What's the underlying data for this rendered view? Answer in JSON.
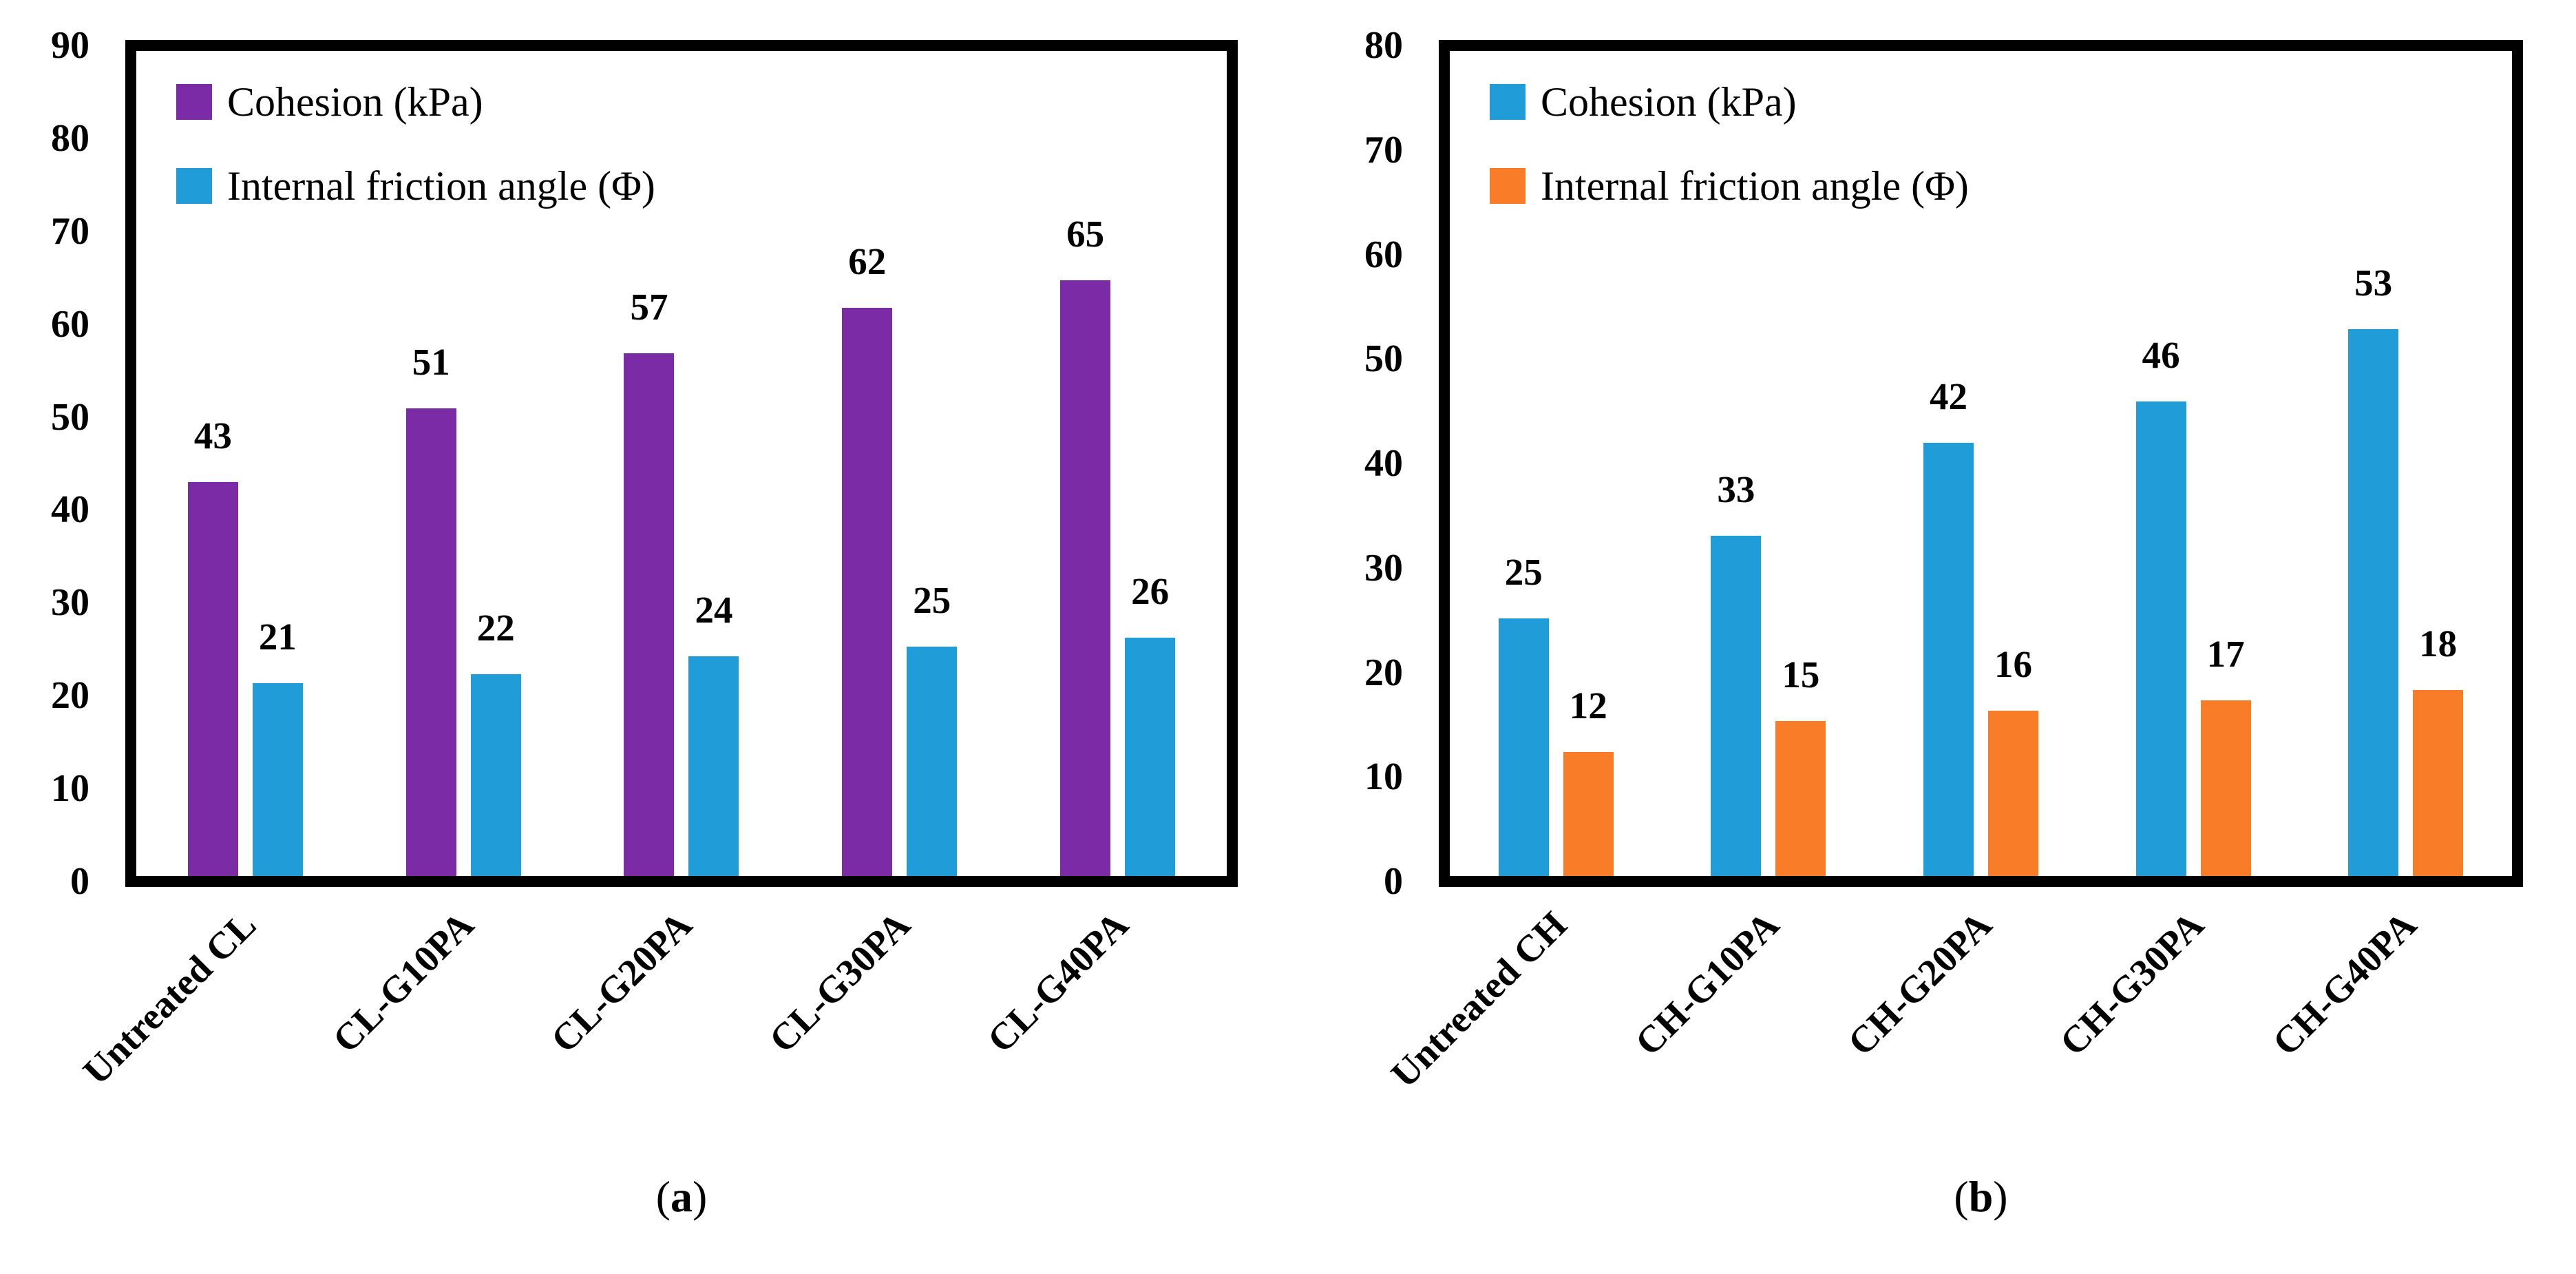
{
  "figure_background": "#ffffff",
  "text_color": "#000000",
  "axis_frame_color": "#000000",
  "chart_data": [
    {
      "type": "bar",
      "panel_label": "a",
      "title": "",
      "xlabel": "",
      "ylabel": "",
      "ylim": [
        0,
        90
      ],
      "ytick_step": 10,
      "ytick_labels": [
        "0",
        "10",
        "20",
        "30",
        "40",
        "50",
        "60",
        "70",
        "80",
        "90"
      ],
      "grid": false,
      "legend_position": "top-left-inside",
      "bar_value_labels": true,
      "categories": [
        "Untreated CL",
        "CL-G10PA",
        "CL-G20PA",
        "CL-G30PA",
        "CL-G40PA"
      ],
      "series": [
        {
          "key": "cohesion",
          "name": "Cohesion (kPa)",
          "color": "#7C2BA6",
          "values": [
            43,
            51,
            57,
            62,
            65
          ]
        },
        {
          "key": "friction",
          "name": "Internal friction angle (Φ)",
          "color": "#209CD8",
          "values": [
            21,
            22,
            24,
            25,
            26
          ]
        }
      ]
    },
    {
      "type": "bar",
      "panel_label": "b",
      "title": "",
      "xlabel": "",
      "ylabel": "",
      "ylim": [
        0,
        80
      ],
      "ytick_step": 10,
      "ytick_labels": [
        "0",
        "10",
        "20",
        "30",
        "40",
        "50",
        "60",
        "70",
        "80"
      ],
      "grid": false,
      "legend_position": "top-left-inside",
      "bar_value_labels": true,
      "categories": [
        "Untreated CH",
        "CH-G10PA",
        "CH-G20PA",
        "CH-G30PA",
        "CH-G40PA"
      ],
      "series": [
        {
          "key": "cohesion",
          "name": "Cohesion (kPa)",
          "color": "#209CD8",
          "values": [
            25,
            33,
            42,
            46,
            53
          ]
        },
        {
          "key": "friction",
          "name": "Internal friction angle (Φ)",
          "color": "#F97D28",
          "values": [
            12,
            15,
            16,
            17,
            18
          ]
        }
      ]
    }
  ]
}
